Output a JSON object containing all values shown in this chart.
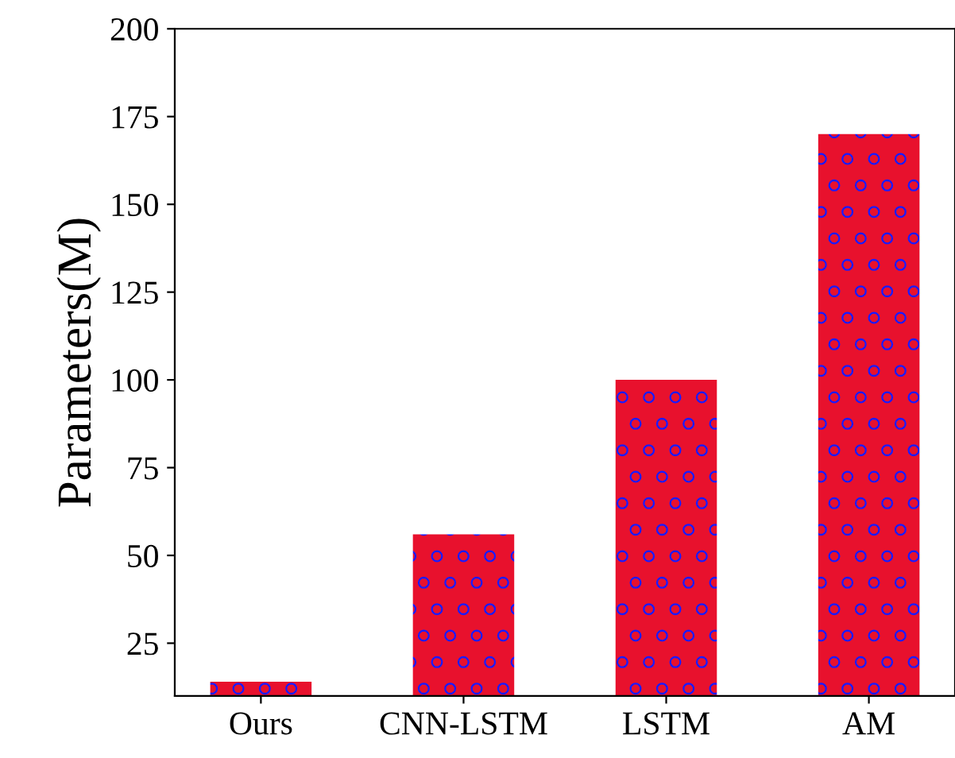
{
  "chart_data": {
    "type": "bar",
    "ylabel": "Parameters(M)",
    "categories": [
      "Ours",
      "CNN-LSTM",
      "LSTM",
      "AM"
    ],
    "values": [
      14,
      56,
      100,
      170
    ],
    "color": "#e8112d",
    "ylim": [
      10,
      200
    ],
    "yticks": [
      25,
      50,
      75,
      100,
      125,
      150,
      175,
      200
    ],
    "grid": false
  }
}
